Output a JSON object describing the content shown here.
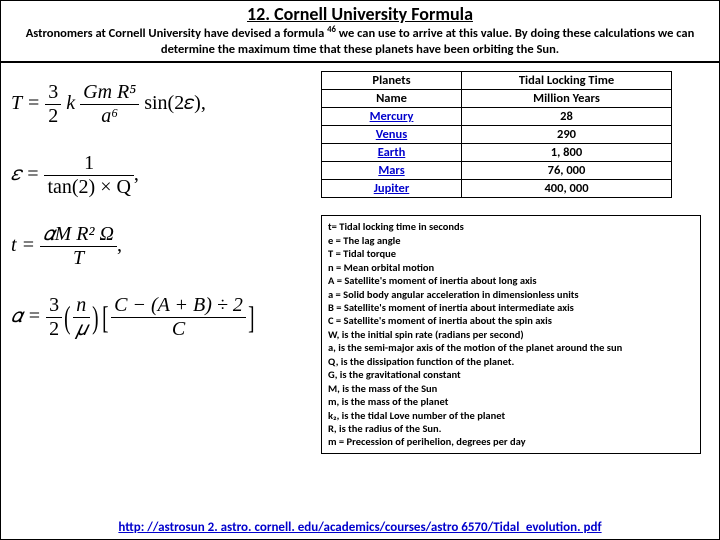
{
  "header": {
    "title": "12. Cornell University Formula",
    "subtitle_part1": "Astronomers at Cornell University have devised a formula ",
    "subtitle_ref": "46",
    "subtitle_part2": " we can use to arrive at this value. By doing these calculations we can determine the maximum time that these planets have been orbiting the Sun."
  },
  "table": {
    "headers": [
      [
        "Planets",
        "Tidal Locking Time"
      ],
      [
        "Name",
        "Million Years"
      ]
    ],
    "rows": [
      {
        "name": "Mercury",
        "value": "28",
        "link": true
      },
      {
        "name": "Venus",
        "value": "290",
        "link": true
      },
      {
        "name": "Earth",
        "value": "1, 800",
        "link": true
      },
      {
        "name": "Mars",
        "value": "76, 000",
        "link": true
      },
      {
        "name": "Jupiter",
        "value": "400, 000",
        "link": true
      }
    ]
  },
  "legend": [
    "t= Tidal locking time in seconds",
    "e = The lag angle",
    "T = Tidal torque",
    "n = Mean orbital motion",
    "A = Satellite's moment of inertia about long axis",
    "a = Solid body angular acceleration in dimensionless units",
    "B = Satellite's moment of inertia about intermediate axis",
    "C = Satellite's moment of inertia about the spin axis",
    "W, is the initial spin rate (radians per second)",
    "a, is the semi-major axis of the motion of the planet around the sun",
    "Q, is the dissipation function of the planet.",
    "G, is the gravitational constant",
    "M, is the mass of the Sun",
    "m, is the mass of the planet",
    "k₂, is the tidal Love number of the planet",
    "R, is the radius of the Sun.",
    "m = Precession of perihelion, degrees per day"
  ],
  "footer": {
    "url": "http: //astrosun 2. astro. cornell. edu/academics/courses/astro 6570/Tidal_evolution. pdf"
  },
  "formulas": {
    "f1": {
      "lhs": "T =",
      "coef_num": "3",
      "coef_den": "2",
      "k": "k",
      "frac_num": "Gm R⁵",
      "frac_den": "a⁶",
      "trig": "sin(2𝜀),"
    },
    "f2": {
      "lhs": "𝜀 =",
      "num": "1",
      "den": "tan(2) × Q",
      "comma": ","
    },
    "f3": {
      "lhs": "t =",
      "num": "𝛼M R² Ω",
      "den": "T",
      "comma": ","
    },
    "f4": {
      "lhs": "𝛼 =",
      "coef_num": "3",
      "coef_den": "2",
      "paren_num": "n",
      "paren_den": "𝜇",
      "br_num": "C − (A + B) ÷ 2",
      "br_den": "C"
    }
  }
}
